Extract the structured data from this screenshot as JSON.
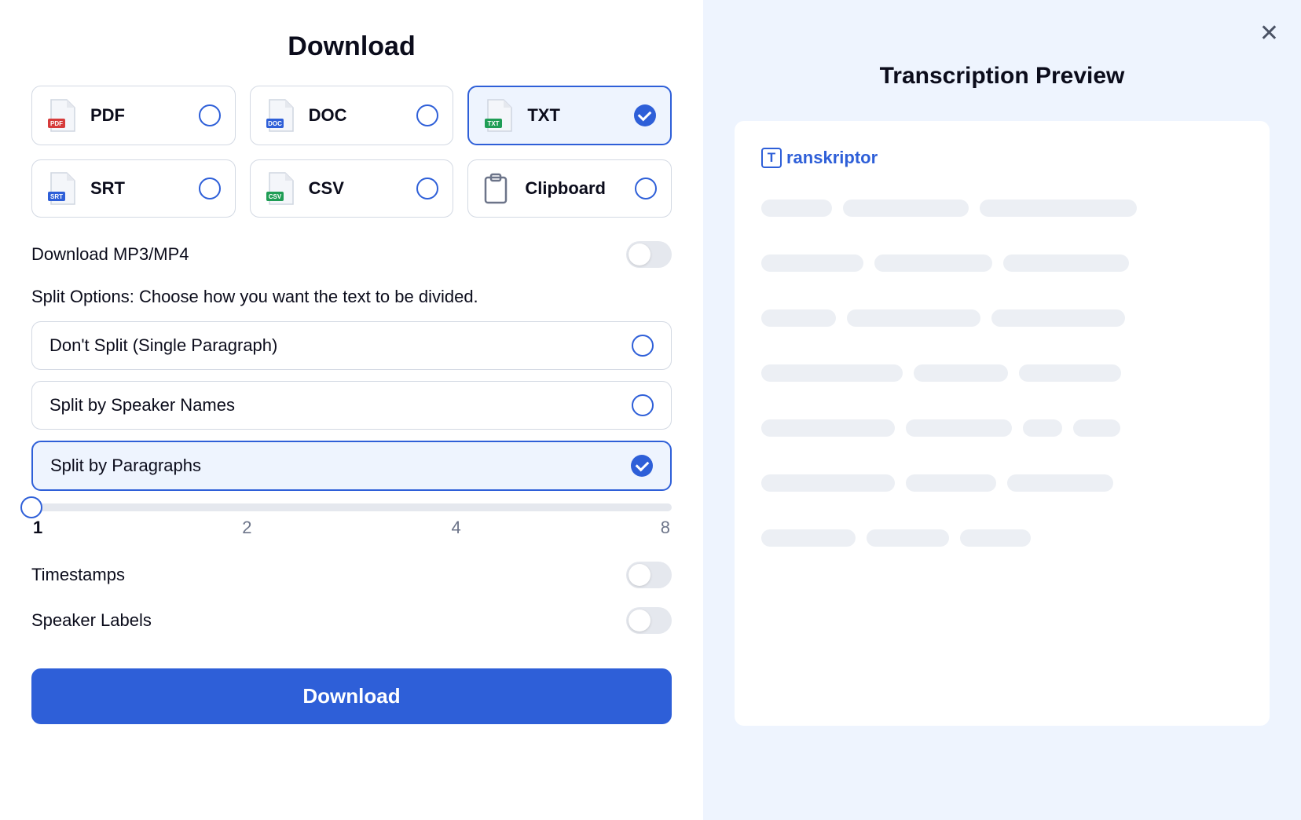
{
  "colors": {
    "primary": "#2e5fd8",
    "panel_bg": "#eef4fe",
    "border": "#d3d9e3",
    "text": "#0b0c1b",
    "muted": "#6c7489",
    "skeleton": "#eceff4",
    "toggle_off": "#e5e8ee"
  },
  "left": {
    "title": "Download",
    "formats": [
      {
        "label": "PDF",
        "badge_color": "#d63b3b",
        "selected": false
      },
      {
        "label": "DOC",
        "badge_color": "#2e5fd8",
        "selected": false
      },
      {
        "label": "TXT",
        "badge_color": "#1f9d55",
        "selected": true
      },
      {
        "label": "SRT",
        "badge_color": "#2e5fd8",
        "selected": false
      },
      {
        "label": "CSV",
        "badge_color": "#1f9d55",
        "selected": false
      },
      {
        "label": "Clipboard",
        "is_clipboard": true,
        "selected": false
      }
    ],
    "download_media_label": "Download MP3/MP4",
    "download_media_on": false,
    "split_section_label": "Split Options: Choose how you want the text to be divided.",
    "split_options": [
      {
        "label": "Don't Split (Single Paragraph)",
        "selected": false
      },
      {
        "label": "Split by Speaker Names",
        "selected": false
      },
      {
        "label": "Split by Paragraphs",
        "selected": true
      }
    ],
    "slider": {
      "value": 1,
      "ticks": [
        "1",
        "2",
        "4",
        "8"
      ],
      "position_pct": 0
    },
    "timestamps_label": "Timestamps",
    "timestamps_on": false,
    "speaker_labels_label": "Speaker Labels",
    "speaker_labels_on": false,
    "download_button": "Download"
  },
  "right": {
    "title": "Transcription Preview",
    "brand": "ranskriptor",
    "brand_letter": "T",
    "skeleton_rows": [
      [
        90,
        160,
        200
      ],
      [
        130,
        150,
        160
      ],
      [
        95,
        170,
        170
      ],
      [
        180,
        120,
        130
      ],
      [
        170,
        135,
        50,
        60
      ],
      [
        170,
        115,
        135
      ],
      [
        120,
        105,
        90
      ]
    ]
  }
}
